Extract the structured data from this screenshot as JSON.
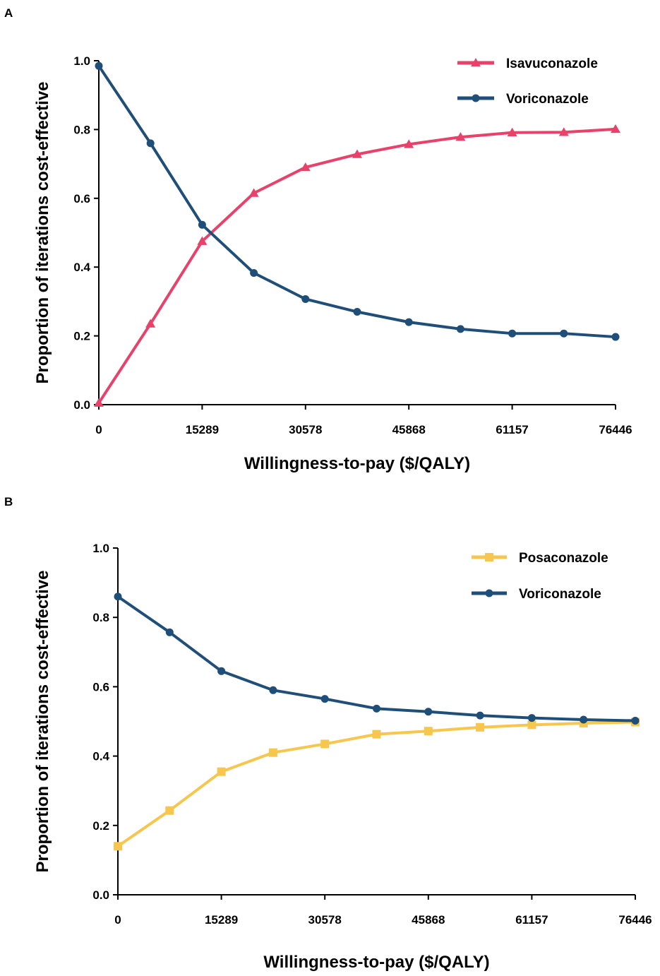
{
  "chart_data": [
    {
      "type": "line",
      "panel": "A",
      "xlabel": "Willingness-to-pay ($/QALY)",
      "ylabel": "Proportion of iterations cost-effective",
      "xlim": [
        0,
        76446
      ],
      "ylim": [
        0,
        1.0
      ],
      "xticks": [
        0,
        15289,
        30578,
        45868,
        61157,
        76446
      ],
      "xtick_labels": [
        "0",
        "15289",
        "30578",
        "45868",
        "61157",
        "76446"
      ],
      "yticks": [
        0,
        0.2,
        0.4,
        0.6,
        0.8,
        1.0
      ],
      "ytick_labels": [
        "0.0",
        "0.2",
        "0.4",
        "0.6",
        "0.8",
        "1.0"
      ],
      "grid": false,
      "legend_position": "top-right",
      "x": [
        0,
        7644.6,
        15289,
        22934,
        30578,
        38223,
        45868,
        53512,
        61157,
        68801,
        76446
      ],
      "series": [
        {
          "name": "Isavuconazole",
          "color": "#e8416a",
          "marker": "triangle",
          "values": [
            0.005,
            0.235,
            0.475,
            0.615,
            0.69,
            0.728,
            0.757,
            0.778,
            0.791,
            0.792,
            0.801
          ]
        },
        {
          "name": "Voriconazole",
          "color": "#1f4e79",
          "marker": "circle",
          "values": [
            0.985,
            0.76,
            0.523,
            0.383,
            0.307,
            0.27,
            0.24,
            0.22,
            0.207,
            0.207,
            0.197
          ]
        }
      ]
    },
    {
      "type": "line",
      "panel": "B",
      "xlabel": "Willingness-to-pay ($/QALY)",
      "ylabel": "Proportion of iterations cost-effective",
      "xlim": [
        0,
        76446
      ],
      "ylim": [
        0,
        1.0
      ],
      "xticks": [
        0,
        15289,
        30578,
        45868,
        61157,
        76446
      ],
      "xtick_labels": [
        "0",
        "15289",
        "30578",
        "45868",
        "61157",
        "76446"
      ],
      "yticks": [
        0,
        0.2,
        0.4,
        0.6,
        0.8,
        1.0
      ],
      "ytick_labels": [
        "0.0",
        "0.2",
        "0.4",
        "0.6",
        "0.8",
        "1.0"
      ],
      "grid": false,
      "legend_position": "top-right",
      "x": [
        0,
        7644.6,
        15289,
        22934,
        30578,
        38223,
        45868,
        53512,
        61157,
        68801,
        76446
      ],
      "series": [
        {
          "name": "Posaconazole",
          "color": "#f6c64e",
          "marker": "square",
          "values": [
            0.14,
            0.243,
            0.355,
            0.41,
            0.435,
            0.463,
            0.472,
            0.483,
            0.49,
            0.495,
            0.498
          ]
        },
        {
          "name": "Voriconazole",
          "color": "#1f4e79",
          "marker": "circle",
          "values": [
            0.86,
            0.757,
            0.645,
            0.59,
            0.565,
            0.537,
            0.528,
            0.517,
            0.51,
            0.505,
            0.502
          ]
        }
      ]
    }
  ]
}
